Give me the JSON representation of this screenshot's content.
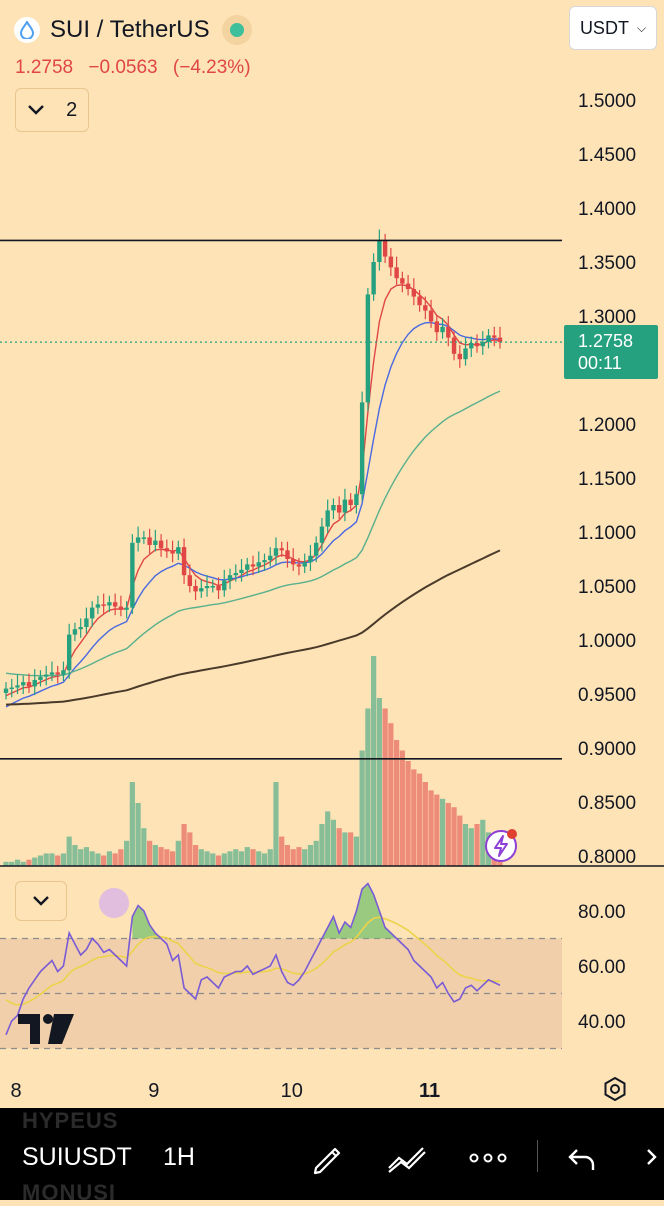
{
  "header": {
    "title": "SUI / TetherUS",
    "last": "1.2758",
    "change": "−0.0563",
    "change_pct": "(−4.23%)",
    "indicator_count": "2",
    "currency": "USDT",
    "countdown": "00:11"
  },
  "toolbar": {
    "symbol": "SUIUSDT",
    "timeframe": "1H",
    "ghost_top": "HYPEUS",
    "ghost_bottom": "MONUSI"
  },
  "icons": [
    "sui-logo-icon",
    "live-status-icon",
    "chevron-down-icon",
    "lightning-icon",
    "tradingview-logo-icon",
    "settings-icon",
    "pen-icon",
    "trend-line-icon",
    "more-icon",
    "undo-icon"
  ],
  "colors": {
    "background": "#fde3b6",
    "up": "#26a17f",
    "down": "#e04646",
    "ema_fast": "#e04646",
    "ema_mid": "#4a68e0",
    "ema_slow": "#58b08c",
    "ema_long": "#4a3a2a",
    "rsi": "#7a5bd6",
    "rsi_ma": "#ecd34a",
    "rsi_band": "#e8c2a2"
  },
  "chart_data": [
    {
      "type": "candlestick",
      "title": "SUI / TetherUS",
      "interval": "1H",
      "y_ticks": [
        "1.5000",
        "1.4500",
        "1.4000",
        "1.3500",
        "1.3000",
        "1.2500",
        "1.2000",
        "1.1500",
        "1.1000",
        "1.0500",
        "1.0000",
        "0.9500",
        "0.9000",
        "0.8500",
        "0.8000"
      ],
      "ylim": [
        0.8,
        1.5
      ],
      "x_ticks": [
        {
          "label": "8",
          "i": 0
        },
        {
          "label": "9",
          "i": 24
        },
        {
          "label": "10",
          "i": 48
        },
        {
          "label": "11",
          "i": 72
        }
      ],
      "x_bold_label": "11",
      "horizontal_lines": [
        1.37,
        0.89
      ],
      "last_price": 1.2758,
      "close": [
        0.955,
        0.956,
        0.958,
        0.961,
        0.957,
        0.963,
        0.966,
        0.968,
        0.97,
        0.968,
        0.972,
        1.005,
        1.01,
        1.012,
        1.02,
        1.03,
        1.033,
        1.032,
        1.035,
        1.031,
        1.028,
        1.03,
        1.09,
        1.095,
        1.095,
        1.088,
        1.092,
        1.085,
        1.082,
        1.08,
        1.086,
        1.06,
        1.05,
        1.045,
        1.048,
        1.05,
        1.05,
        1.046,
        1.055,
        1.06,
        1.062,
        1.065,
        1.07,
        1.068,
        1.072,
        1.074,
        1.078,
        1.085,
        1.083,
        1.075,
        1.07,
        1.068,
        1.072,
        1.078,
        1.09,
        1.105,
        1.12,
        1.125,
        1.118,
        1.13,
        1.125,
        1.135,
        1.22,
        1.32,
        1.35,
        1.37,
        1.355,
        1.345,
        1.335,
        1.33,
        1.325,
        1.318,
        1.31,
        1.305,
        1.295,
        1.285,
        1.29,
        1.28,
        1.265,
        1.26,
        1.27,
        1.275,
        1.272,
        1.276,
        1.282,
        1.28,
        1.2758
      ],
      "volume": [
        2,
        2,
        3,
        2,
        3,
        4,
        5,
        6,
        6,
        5,
        6,
        14,
        10,
        8,
        9,
        7,
        6,
        5,
        7,
        6,
        8,
        12,
        40,
        30,
        18,
        12,
        10,
        9,
        8,
        7,
        12,
        20,
        16,
        10,
        8,
        7,
        6,
        5,
        6,
        7,
        8,
        7,
        9,
        8,
        7,
        6,
        8,
        40,
        14,
        10,
        8,
        9,
        8,
        10,
        12,
        20,
        26,
        22,
        18,
        16,
        16,
        14,
        55,
        75,
        100,
        80,
        75,
        68,
        60,
        55,
        50,
        46,
        44,
        40,
        36,
        34,
        32,
        30,
        28,
        24,
        20,
        18,
        20,
        22,
        16,
        12,
        14
      ],
      "series": [
        {
          "name": "EMA fast",
          "values": "computed from close"
        },
        {
          "name": "EMA mid",
          "values": "computed from close"
        },
        {
          "name": "EMA slow",
          "values": "computed from close"
        },
        {
          "name": "EMA long",
          "values": "computed from close"
        }
      ],
      "grid": false
    },
    {
      "type": "line",
      "title": "RSI",
      "y_ticks": [
        "80.00",
        "60.00",
        "40.00"
      ],
      "ylim": [
        30,
        90
      ],
      "bands": [
        70,
        50,
        30
      ],
      "values": [
        35,
        40,
        42,
        48,
        52,
        55,
        58,
        60,
        62,
        58,
        60,
        72,
        68,
        64,
        66,
        70,
        68,
        65,
        66,
        64,
        62,
        60,
        78,
        82,
        80,
        75,
        72,
        70,
        68,
        62,
        64,
        52,
        50,
        48,
        55,
        56,
        54,
        52,
        56,
        57,
        58,
        58,
        60,
        57,
        58,
        59,
        60,
        64,
        58,
        54,
        53,
        55,
        58,
        62,
        66,
        70,
        74,
        78,
        72,
        76,
        74,
        80,
        88,
        90,
        86,
        80,
        74,
        72,
        70,
        68,
        66,
        62,
        60,
        58,
        56,
        52,
        54,
        50,
        47,
        48,
        52,
        53,
        51,
        53,
        55,
        54,
        53
      ]
    }
  ]
}
